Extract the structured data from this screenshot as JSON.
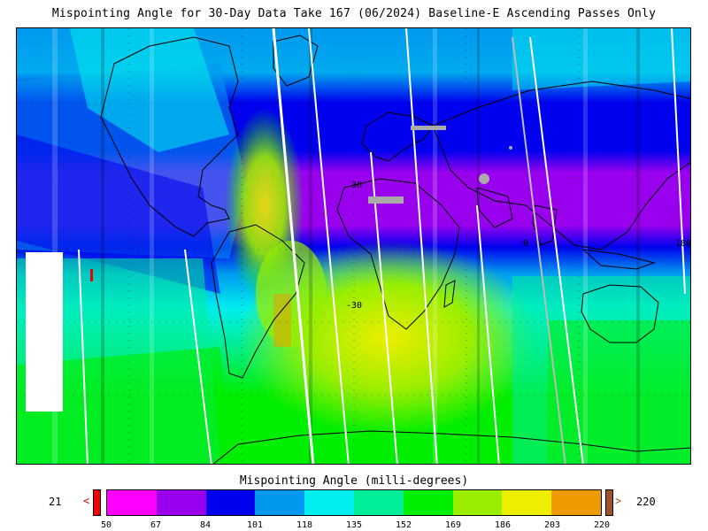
{
  "title": "Mispointing Angle for 30-Day Data Take 167 (06/2024) Baseline-E Ascending Passes Only",
  "map": {
    "lat_labels": [
      "30",
      "-30"
    ],
    "lon_label": "0",
    "right_edge_label": "180"
  },
  "colorbar": {
    "title": "Mispointing Angle (milli-degrees)",
    "min_value": "21",
    "max_value": "220",
    "under_symbol": "<",
    "over_symbol": ">",
    "ticks": [
      "50",
      "67",
      "84",
      "101",
      "118",
      "135",
      "152",
      "169",
      "186",
      "203",
      "220"
    ],
    "colors": [
      "#ff00ff",
      "#9900ee",
      "#0000ee",
      "#0099ee",
      "#00eeee",
      "#00ee99",
      "#00ee00",
      "#99ee00",
      "#eeee00",
      "#ee9900"
    ],
    "under_color": "#ee0000",
    "over_color": "#a0522d"
  }
}
